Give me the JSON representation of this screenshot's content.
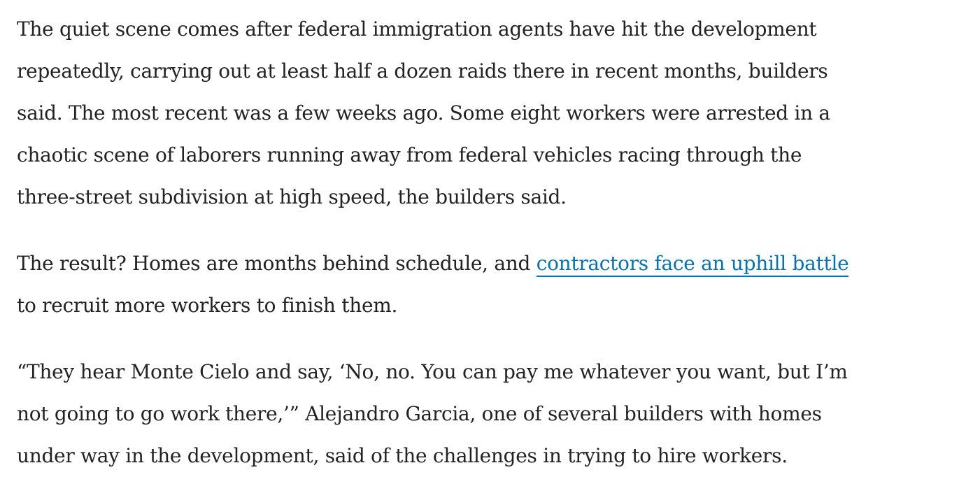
{
  "article": {
    "paragraph_1": {
      "lines": [
        "The quiet scene comes after federal immigration agents have hit the development",
        "repeatedly, carrying out at least half a dozen raids there in recent months, builders",
        "said. The most recent was a few weeks ago. Some eight workers were arrested in a",
        "chaotic scene of laborers running away from federal vehicles racing through the",
        "three-street subdivision at high speed, the builders said."
      ]
    },
    "paragraph_2": {
      "line_1_before_link": "The result? Homes are months behind schedule, and ",
      "link_text": "contractors face an uphill battle",
      "line_2": "to recruit more workers to finish them."
    },
    "paragraph_3": {
      "lines": [
        "“They hear Monte Cielo and say, ‘No, no. You can pay me whatever you want, but I’m",
        "not going to go work there,’” Alejandro Garcia, one of several builders with homes",
        "under way in the development, said of the challenges in trying to hire workers."
      ]
    },
    "colors": {
      "text": "#222222",
      "link": "#0274b6"
    }
  }
}
